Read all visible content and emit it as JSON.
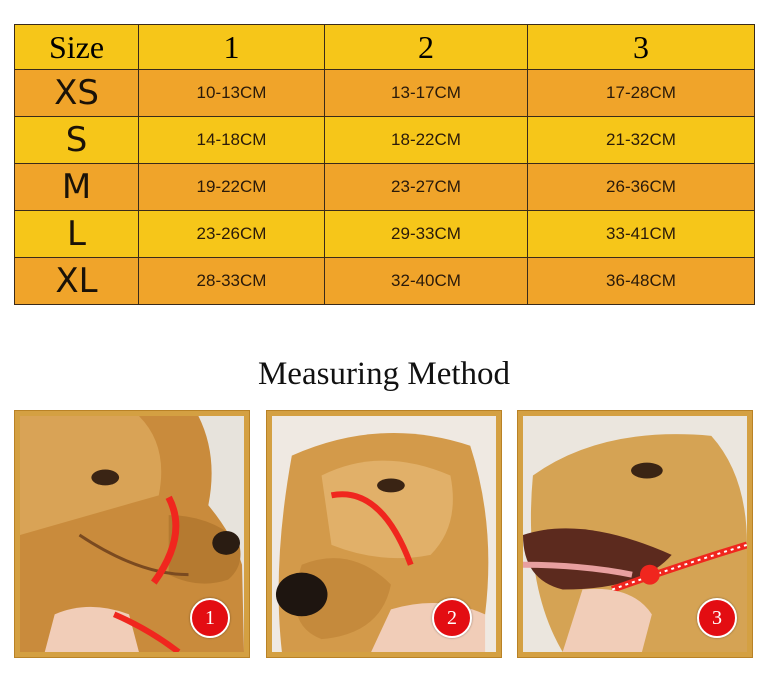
{
  "size_table": {
    "header": [
      "Size",
      "1",
      "2",
      "3"
    ],
    "rows": [
      {
        "size": "XS",
        "m1": "10-13CM",
        "m2": "13-17CM",
        "m3": "17-28CM"
      },
      {
        "size": "S",
        "m1": "14-18CM",
        "m2": "18-22CM",
        "m3": "21-32CM"
      },
      {
        "size": "M",
        "m1": "19-22CM",
        "m2": "23-27CM",
        "m3": "26-36CM"
      },
      {
        "size": "L",
        "m1": "23-26CM",
        "m2": "29-33CM",
        "m3": "33-41CM"
      },
      {
        "size": "XL",
        "m1": "28-33CM",
        "m2": "32-40CM",
        "m3": "36-48CM"
      }
    ]
  },
  "method": {
    "title": "Measuring Method",
    "photos": [
      {
        "number": "1"
      },
      {
        "number": "2"
      },
      {
        "number": "3"
      }
    ]
  },
  "colors": {
    "row_orange": "#f0a42a",
    "row_yellow": "#f6c619",
    "badge_red": "#e30d12",
    "strap_red": "#f0261e"
  }
}
